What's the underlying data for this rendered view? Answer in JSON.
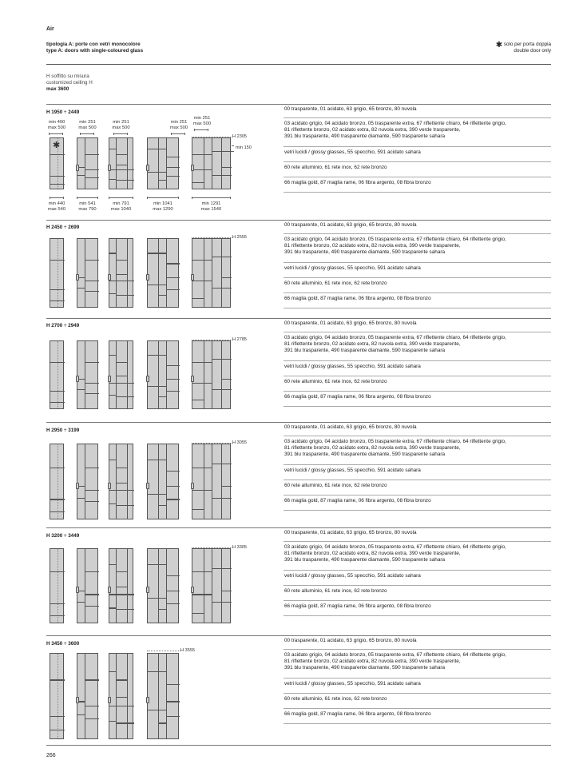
{
  "header": {
    "collection": "Air",
    "type_it": "tipologia A: porte con vetri monocolore",
    "type_en": "type A: doors with single-coloured glass",
    "note_it": "solo per porta doppia",
    "note_en": "double door only",
    "note_icon": "asterisk-icon"
  },
  "ceiling": {
    "line1": "H soffitto su misura",
    "line2": "customized ceiling H",
    "max": "max 3600"
  },
  "finishes": [
    "00 trasparente, 01 acidato, 63 grigio, 65 bronzo, 80 nuvola",
    "03 acidato grigio, 04 acidato bronzo, 05 trasparente extra, 67 riflettente chiaro, 64 riflettente grigio,",
    "81 riflettente bronzo, 02 acidato extra, 82 nuvola extra, 390 verde trasparente,",
    "391 blu trasparente, 490 trasparente diamante, 590 trasparente sahara",
    "vetri lucidi / glossy glasses, 55 specchio, 591 acidato sahara",
    "60 rete alluminio, 61 rete inox, 62 rete bronzo",
    "66 maglia gold, 87 maglia rame, 06 fibra argento, 08 fibra bronzo"
  ],
  "sections": [
    {
      "range": "H 1950 ÷ 2449",
      "marker": "H 2305",
      "extra": "min 150",
      "top_dims": [
        [
          "min 400",
          "max 500"
        ],
        [
          "min 251",
          "max 500"
        ],
        [
          "min 251",
          "max 500"
        ],
        [
          "min 251",
          "max 500"
        ],
        [
          "min 251",
          "max 500"
        ]
      ],
      "bottom_dims": [
        [
          "min 440",
          "max 540"
        ],
        [
          "min 541",
          "max 790"
        ],
        [
          "min 791",
          "max 1040"
        ],
        [
          "min 1041",
          "max 1290"
        ],
        [
          "min 1291",
          "max 1540"
        ]
      ]
    },
    {
      "range": "H 2450 ÷ 2699",
      "marker": "H 2555"
    },
    {
      "range": "H 2700 ÷ 2949",
      "marker": "H 2785"
    },
    {
      "range": "H 2950 ÷ 3199",
      "marker": "H 3055"
    },
    {
      "range": "H 3200 ÷ 3449",
      "marker": "H 3305"
    },
    {
      "range": "H 3450 ÷ 3600",
      "marker": "H 3555"
    }
  ],
  "page_number": "266"
}
